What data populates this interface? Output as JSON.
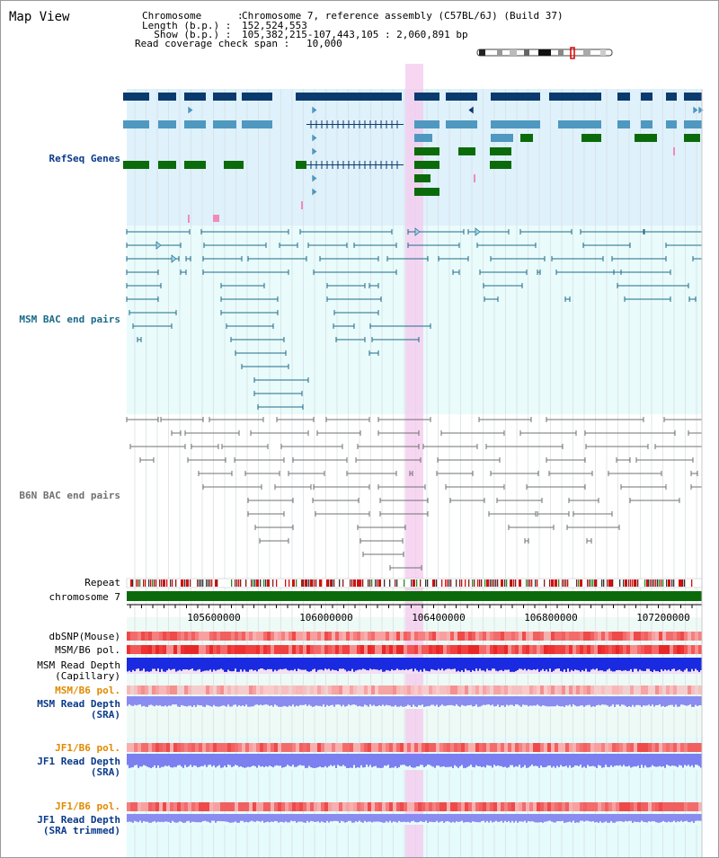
{
  "header": {
    "title": "Map View",
    "chromosome_key": "Chromosome      :",
    "chromosome_val": "Chromosome 7, reference assembly (C57BL/6J) (Build 37)",
    "length_key": "Length (b.p.) :",
    "length_val": "152,524,553",
    "show_key": "  Show (b.p.) :",
    "show_val": "105,382,215-107,443,105 : 2,060,891 bp",
    "coverage_key": "Read coverage check span :",
    "coverage_val": "10,000"
  },
  "tracks": {
    "refseq": "RefSeq Genes",
    "msm_bac": "MSM BAC end pairs",
    "b6n_bac": "B6N BAC end pairs",
    "repeat": "Repeat",
    "chromosome": "chromosome 7",
    "dbsnp": "dbSNP(Mouse)",
    "msm_b6_pol": "MSM/B6 pol.",
    "msm_depth_cap_1": "MSM Read Depth",
    "msm_depth_cap_2": "(Capillary)",
    "msm_b6_pol2": "MSM/B6 pol.",
    "msm_depth_sra_1": "MSM Read Depth",
    "msm_depth_sra_2": "(SRA)",
    "jf1_b6_pol": "JF1/B6 pol.",
    "jf1_depth_sra_1": "JF1 Read Depth",
    "jf1_depth_sra_2": "(SRA)",
    "jf1_b6_pol2": "JF1/B6 pol.",
    "jf1_depth_trim_1": "JF1 Read Depth",
    "jf1_depth_trim_2": "(SRA trimmed)"
  },
  "ruler": {
    "ticks": [
      "105600000",
      "106000000",
      "106400000",
      "106800000",
      "107200000"
    ]
  },
  "colors": {
    "refseq_bg": "#dff1fb",
    "msm_bac_bg": "#e9fbfb",
    "highlight": "#f6d4f0",
    "refseq_dark": "#0a3a6e",
    "refseq_mid": "#4f98c0",
    "refseq_green": "#0b6b0b",
    "msm_line": "#1f6b8a",
    "b6n_line": "#707070",
    "chromosome": "#0b6b0b",
    "label_blue": "#0a3a8a",
    "label_teal": "#1a6a8a",
    "label_orange": "#e08a00",
    "depth_blue": "#1a2ae0",
    "depth_light": "#7b7ff0"
  }
}
